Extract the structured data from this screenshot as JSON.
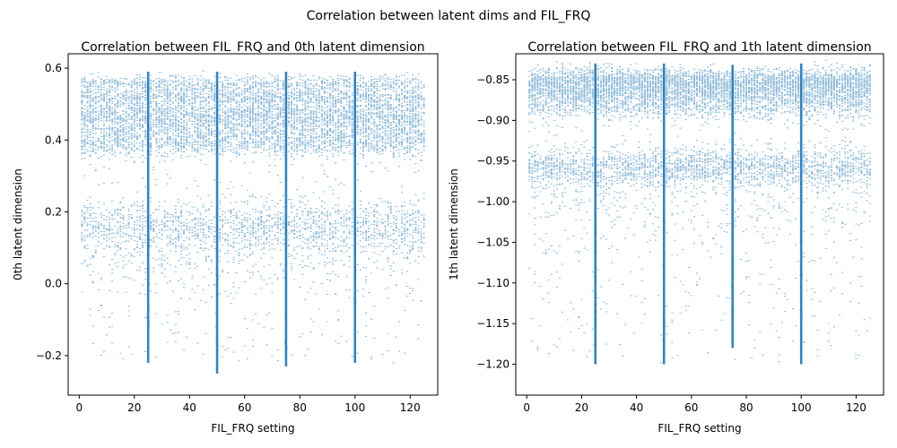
{
  "figure": {
    "suptitle": "Correlation between latent dims and FIL_FRQ"
  },
  "chart_data": [
    {
      "type": "scatter",
      "title": "Correlation between FIL_FRQ and 0th latent dimension",
      "xlabel": "FIL_FRQ setting",
      "ylabel": "0th latent dimension",
      "xlim": [
        -4,
        130
      ],
      "ylim": [
        -0.31,
        0.64
      ],
      "xticks": [
        0,
        20,
        40,
        60,
        80,
        100,
        120
      ],
      "yticks": [
        -0.2,
        0.0,
        0.2,
        0.4,
        0.6
      ],
      "ytick_labels": [
        "−0.2",
        "0.0",
        "0.2",
        "0.4",
        "0.6"
      ],
      "color": "#1f77b4",
      "x_range": [
        1,
        125
      ],
      "bands": [
        {
          "center": 0.555,
          "spread": 0.012,
          "weight": 12
        },
        {
          "center": 0.52,
          "spread": 0.012,
          "weight": 14
        },
        {
          "center": 0.48,
          "spread": 0.02,
          "weight": 18
        },
        {
          "center": 0.44,
          "spread": 0.025,
          "weight": 22
        },
        {
          "center": 0.39,
          "spread": 0.02,
          "weight": 16
        },
        {
          "center": 0.16,
          "spread": 0.035,
          "weight": 20
        },
        {
          "center": 0.08,
          "spread": 0.06,
          "weight": 6
        }
      ],
      "scatter_range": [
        -0.22,
        0.58
      ],
      "spike_x": [
        25,
        50,
        75,
        100
      ],
      "spike_ranges": [
        [
          -0.22,
          0.59
        ],
        [
          -0.25,
          0.59
        ],
        [
          -0.23,
          0.59
        ],
        [
          -0.22,
          0.59
        ]
      ]
    },
    {
      "type": "scatter",
      "title": "Correlation between FIL_FRQ and 1th latent dimension",
      "xlabel": "FIL_FRQ setting",
      "ylabel": "1th latent dimension",
      "xlim": [
        -4,
        130
      ],
      "ylim": [
        -1.238,
        -0.818
      ],
      "xticks": [
        0,
        20,
        40,
        60,
        80,
        100,
        120
      ],
      "yticks": [
        -1.2,
        -1.15,
        -1.1,
        -1.05,
        -1.0,
        -0.95,
        -0.9,
        -0.85
      ],
      "ytick_labels": [
        "−1.20",
        "−1.15",
        "−1.10",
        "−1.05",
        "−1.00",
        "−0.95",
        "−0.90",
        "−0.85"
      ],
      "color": "#1f77b4",
      "x_range": [
        1,
        125
      ],
      "bands": [
        {
          "center": -0.852,
          "spread": 0.008,
          "weight": 24
        },
        {
          "center": -0.868,
          "spread": 0.01,
          "weight": 20
        },
        {
          "center": -0.885,
          "spread": 0.008,
          "weight": 6
        },
        {
          "center": -0.958,
          "spread": 0.012,
          "weight": 18
        },
        {
          "center": -1.0,
          "spread": 0.03,
          "weight": 3
        }
      ],
      "scatter_range": [
        -1.2,
        -0.84
      ],
      "spike_x": [
        25,
        50,
        75,
        100
      ],
      "spike_ranges": [
        [
          -1.2,
          -0.83
        ],
        [
          -1.2,
          -0.83
        ],
        [
          -1.18,
          -0.832
        ],
        [
          -1.2,
          -0.83
        ]
      ]
    }
  ]
}
